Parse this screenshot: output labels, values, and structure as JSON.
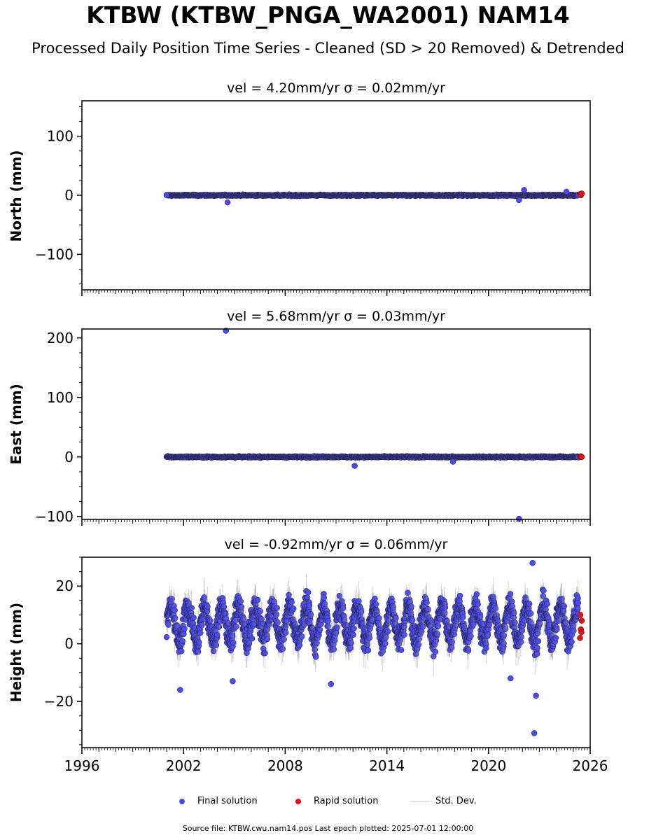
{
  "figure": {
    "title": "KTBW (KTBW_PNGA_WA2001) NAM14",
    "subtitle": "Processed Daily Position Time Series - Cleaned (SD > 20 Removed) & Detrended",
    "source": "Source file: KTBW.cwu.nam14.pos  Last epoch plotted: 2025-07-01 12:00:00"
  },
  "legend": {
    "final": "Final solution",
    "rapid": "Rapid solution",
    "stddev": "Std. Dev."
  },
  "colors": {
    "final": "#4b4bf0",
    "rapid": "#e81010",
    "stddev": "#888888",
    "edge": "#1a1a1a"
  },
  "chart_data": [
    {
      "type": "scatter",
      "title": "vel = 4.20mm/yr   σ = 0.02mm/yr",
      "ylabel": "North (mm)",
      "xlim": [
        1996,
        2026
      ],
      "ylim": [
        -160,
        160
      ],
      "yticks": [
        "100",
        "0",
        "−100"
      ],
      "xticks": [
        "1996",
        "2002",
        "2008",
        "2014",
        "2020",
        "2026"
      ],
      "data_start": 2001.0,
      "data_end": 2025.3,
      "series": [
        {
          "name": "Final solution",
          "x": [
            2001.0,
            2004.6,
            2021.8,
            2022.1,
            2024.6
          ],
          "y": [
            0,
            -12,
            -8,
            9,
            6
          ]
        },
        {
          "name": "Rapid solution",
          "x": [
            2025.4,
            2025.45,
            2025.5
          ],
          "y": [
            2,
            0,
            3
          ]
        }
      ],
      "noise_amplitude": 3
    },
    {
      "type": "scatter",
      "title": "vel = 5.68mm/yr   σ = 0.03mm/yr",
      "ylabel": "East (mm)",
      "xlim": [
        1996,
        2026
      ],
      "ylim": [
        -105,
        215
      ],
      "yticks": [
        "200",
        "100",
        "0",
        "−100"
      ],
      "xticks": [
        "1996",
        "2002",
        "2008",
        "2014",
        "2020",
        "2026"
      ],
      "data_start": 2001.0,
      "data_end": 2025.3,
      "series": [
        {
          "name": "Final solution",
          "x": [
            2004.5,
            2012.1,
            2021.8,
            2017.9
          ],
          "y": [
            212,
            -15,
            -104,
            -8
          ]
        },
        {
          "name": "Rapid solution",
          "x": [
            2025.4,
            2025.45,
            2025.5
          ],
          "y": [
            0,
            1,
            0
          ]
        }
      ],
      "noise_amplitude": 3
    },
    {
      "type": "scatter",
      "title": "vel = -0.92mm/yr   σ = 0.06mm/yr",
      "ylabel": "Height (mm)",
      "xlim": [
        1996,
        2026
      ],
      "ylim": [
        -36,
        30
      ],
      "yticks": [
        "20",
        "0",
        "−20"
      ],
      "xticks": [
        "1996",
        "2002",
        "2008",
        "2014",
        "2020",
        "2026"
      ],
      "data_start": 2001.0,
      "data_end": 2025.3,
      "series": [
        {
          "name": "Final solution",
          "x": [
            2001.8,
            2004.9,
            2010.7,
            2021.3,
            2022.7,
            2022.8,
            2022.6
          ],
          "y": [
            -16,
            -13,
            -14,
            -12,
            -31,
            -18,
            28
          ]
        },
        {
          "name": "Rapid solution",
          "x": [
            2025.4,
            2025.45,
            2025.5,
            2025.42,
            2025.48
          ],
          "y": [
            2,
            5,
            8,
            10,
            4
          ]
        }
      ],
      "noise_amplitude": 8
    }
  ]
}
